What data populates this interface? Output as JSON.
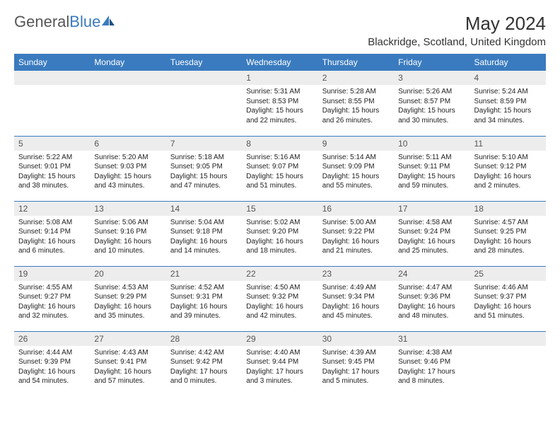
{
  "brand": {
    "part1": "General",
    "part2": "Blue"
  },
  "title": "May 2024",
  "location": "Blackridge, Scotland, United Kingdom",
  "colors": {
    "header_bg": "#3a7bbf",
    "header_fg": "#ffffff",
    "daynum_bg": "#ededed",
    "text": "#222222",
    "brand_gray": "#555555",
    "brand_blue": "#3a7bbf"
  },
  "weekdays": [
    "Sunday",
    "Monday",
    "Tuesday",
    "Wednesday",
    "Thursday",
    "Friday",
    "Saturday"
  ],
  "weeks": [
    [
      {
        "n": "",
        "sr": "",
        "ss": "",
        "dl": ""
      },
      {
        "n": "",
        "sr": "",
        "ss": "",
        "dl": ""
      },
      {
        "n": "",
        "sr": "",
        "ss": "",
        "dl": ""
      },
      {
        "n": "1",
        "sr": "Sunrise: 5:31 AM",
        "ss": "Sunset: 8:53 PM",
        "dl": "Daylight: 15 hours and 22 minutes."
      },
      {
        "n": "2",
        "sr": "Sunrise: 5:28 AM",
        "ss": "Sunset: 8:55 PM",
        "dl": "Daylight: 15 hours and 26 minutes."
      },
      {
        "n": "3",
        "sr": "Sunrise: 5:26 AM",
        "ss": "Sunset: 8:57 PM",
        "dl": "Daylight: 15 hours and 30 minutes."
      },
      {
        "n": "4",
        "sr": "Sunrise: 5:24 AM",
        "ss": "Sunset: 8:59 PM",
        "dl": "Daylight: 15 hours and 34 minutes."
      }
    ],
    [
      {
        "n": "5",
        "sr": "Sunrise: 5:22 AM",
        "ss": "Sunset: 9:01 PM",
        "dl": "Daylight: 15 hours and 38 minutes."
      },
      {
        "n": "6",
        "sr": "Sunrise: 5:20 AM",
        "ss": "Sunset: 9:03 PM",
        "dl": "Daylight: 15 hours and 43 minutes."
      },
      {
        "n": "7",
        "sr": "Sunrise: 5:18 AM",
        "ss": "Sunset: 9:05 PM",
        "dl": "Daylight: 15 hours and 47 minutes."
      },
      {
        "n": "8",
        "sr": "Sunrise: 5:16 AM",
        "ss": "Sunset: 9:07 PM",
        "dl": "Daylight: 15 hours and 51 minutes."
      },
      {
        "n": "9",
        "sr": "Sunrise: 5:14 AM",
        "ss": "Sunset: 9:09 PM",
        "dl": "Daylight: 15 hours and 55 minutes."
      },
      {
        "n": "10",
        "sr": "Sunrise: 5:11 AM",
        "ss": "Sunset: 9:11 PM",
        "dl": "Daylight: 15 hours and 59 minutes."
      },
      {
        "n": "11",
        "sr": "Sunrise: 5:10 AM",
        "ss": "Sunset: 9:12 PM",
        "dl": "Daylight: 16 hours and 2 minutes."
      }
    ],
    [
      {
        "n": "12",
        "sr": "Sunrise: 5:08 AM",
        "ss": "Sunset: 9:14 PM",
        "dl": "Daylight: 16 hours and 6 minutes."
      },
      {
        "n": "13",
        "sr": "Sunrise: 5:06 AM",
        "ss": "Sunset: 9:16 PM",
        "dl": "Daylight: 16 hours and 10 minutes."
      },
      {
        "n": "14",
        "sr": "Sunrise: 5:04 AM",
        "ss": "Sunset: 9:18 PM",
        "dl": "Daylight: 16 hours and 14 minutes."
      },
      {
        "n": "15",
        "sr": "Sunrise: 5:02 AM",
        "ss": "Sunset: 9:20 PM",
        "dl": "Daylight: 16 hours and 18 minutes."
      },
      {
        "n": "16",
        "sr": "Sunrise: 5:00 AM",
        "ss": "Sunset: 9:22 PM",
        "dl": "Daylight: 16 hours and 21 minutes."
      },
      {
        "n": "17",
        "sr": "Sunrise: 4:58 AM",
        "ss": "Sunset: 9:24 PM",
        "dl": "Daylight: 16 hours and 25 minutes."
      },
      {
        "n": "18",
        "sr": "Sunrise: 4:57 AM",
        "ss": "Sunset: 9:25 PM",
        "dl": "Daylight: 16 hours and 28 minutes."
      }
    ],
    [
      {
        "n": "19",
        "sr": "Sunrise: 4:55 AM",
        "ss": "Sunset: 9:27 PM",
        "dl": "Daylight: 16 hours and 32 minutes."
      },
      {
        "n": "20",
        "sr": "Sunrise: 4:53 AM",
        "ss": "Sunset: 9:29 PM",
        "dl": "Daylight: 16 hours and 35 minutes."
      },
      {
        "n": "21",
        "sr": "Sunrise: 4:52 AM",
        "ss": "Sunset: 9:31 PM",
        "dl": "Daylight: 16 hours and 39 minutes."
      },
      {
        "n": "22",
        "sr": "Sunrise: 4:50 AM",
        "ss": "Sunset: 9:32 PM",
        "dl": "Daylight: 16 hours and 42 minutes."
      },
      {
        "n": "23",
        "sr": "Sunrise: 4:49 AM",
        "ss": "Sunset: 9:34 PM",
        "dl": "Daylight: 16 hours and 45 minutes."
      },
      {
        "n": "24",
        "sr": "Sunrise: 4:47 AM",
        "ss": "Sunset: 9:36 PM",
        "dl": "Daylight: 16 hours and 48 minutes."
      },
      {
        "n": "25",
        "sr": "Sunrise: 4:46 AM",
        "ss": "Sunset: 9:37 PM",
        "dl": "Daylight: 16 hours and 51 minutes."
      }
    ],
    [
      {
        "n": "26",
        "sr": "Sunrise: 4:44 AM",
        "ss": "Sunset: 9:39 PM",
        "dl": "Daylight: 16 hours and 54 minutes."
      },
      {
        "n": "27",
        "sr": "Sunrise: 4:43 AM",
        "ss": "Sunset: 9:41 PM",
        "dl": "Daylight: 16 hours and 57 minutes."
      },
      {
        "n": "28",
        "sr": "Sunrise: 4:42 AM",
        "ss": "Sunset: 9:42 PM",
        "dl": "Daylight: 17 hours and 0 minutes."
      },
      {
        "n": "29",
        "sr": "Sunrise: 4:40 AM",
        "ss": "Sunset: 9:44 PM",
        "dl": "Daylight: 17 hours and 3 minutes."
      },
      {
        "n": "30",
        "sr": "Sunrise: 4:39 AM",
        "ss": "Sunset: 9:45 PM",
        "dl": "Daylight: 17 hours and 5 minutes."
      },
      {
        "n": "31",
        "sr": "Sunrise: 4:38 AM",
        "ss": "Sunset: 9:46 PM",
        "dl": "Daylight: 17 hours and 8 minutes."
      },
      {
        "n": "",
        "sr": "",
        "ss": "",
        "dl": ""
      }
    ]
  ]
}
